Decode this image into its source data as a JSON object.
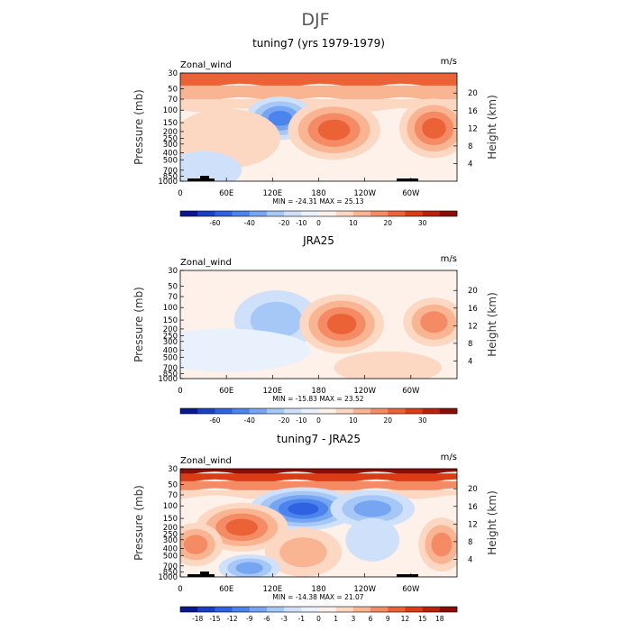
{
  "figure_title": "DJF",
  "chart_data": [
    {
      "type": "heatmap",
      "title": "tuning7 (yrs 1979-1979)",
      "variable_label": "Zonal_wind",
      "units_label": "m/s",
      "ylabel": "Pressure (mb)",
      "y2label": "Height (km)",
      "xticks": [
        "0",
        "60E",
        "120E",
        "180",
        "120W",
        "60W"
      ],
      "yticks": [
        "30",
        "50",
        "70",
        "100",
        "150",
        "200",
        "250",
        "300",
        "400",
        "500",
        "700",
        "850",
        "1000"
      ],
      "y2ticks": [
        "20",
        "16",
        "12",
        "8",
        "4"
      ],
      "stats": "MIN = -24.31   MAX =  25.13",
      "colorbar_labels": [
        "-60",
        "-40",
        "-20",
        "-10",
        "0",
        "10",
        "20",
        "30"
      ],
      "colorbar_colors": [
        "#08188f",
        "#1a3fc4",
        "#2e62e0",
        "#4b84ec",
        "#76a6f2",
        "#a6c8f7",
        "#cfe0fa",
        "#e9f1fc",
        "#fdf1e9",
        "#fcd7c1",
        "#f9b492",
        "#f48b64",
        "#ec6237",
        "#da3d16",
        "#b8210a",
        "#8a0e05"
      ],
      "field": {
        "bands": [
          {
            "p_top": 30,
            "p_bot": 45,
            "color": "#ec6237"
          },
          {
            "p_top": 45,
            "p_bot": 70,
            "color": "#f9b492"
          },
          {
            "p_top": 70,
            "p_bot": 100,
            "color": "#fcd7c1"
          }
        ],
        "base": "#fdf1e9",
        "blobs": [
          {
            "lon": 130,
            "p": 130,
            "w": 45,
            "h": 0.4,
            "levels": [
              "#cfe0fa",
              "#a6c8f7",
              "#76a6f2",
              "#4b84ec"
            ]
          },
          {
            "lon": 200,
            "p": 190,
            "w": 60,
            "h": 0.55,
            "levels": [
              "#fcd7c1",
              "#f9b492",
              "#f48b64",
              "#ec6237"
            ]
          },
          {
            "lon": 330,
            "p": 180,
            "w": 45,
            "h": 0.55,
            "levels": [
              "#fcd7c1",
              "#f9b492",
              "#f48b64",
              "#ec6237"
            ]
          },
          {
            "lon": 60,
            "p": 250,
            "w": 70,
            "h": 0.55,
            "levels": [
              "#fcd7c1"
            ]
          },
          {
            "lon": 30,
            "p": 700,
            "w": 50,
            "h": 0.35,
            "levels": [
              "#cfe0fa"
            ]
          }
        ]
      }
    },
    {
      "type": "heatmap",
      "title": "JRA25",
      "variable_label": "Zonal_wind",
      "units_label": "m/s",
      "ylabel": "Pressure (mb)",
      "y2label": "Height (km)",
      "xticks": [
        "0",
        "60E",
        "120E",
        "180",
        "120W",
        "60W"
      ],
      "yticks": [
        "30",
        "50",
        "70",
        "100",
        "150",
        "200",
        "250",
        "300",
        "400",
        "500",
        "700",
        "850",
        "1000"
      ],
      "y2ticks": [
        "20",
        "16",
        "12",
        "8",
        "4"
      ],
      "stats": "MIN = -15.83   MAX =  23.52",
      "colorbar_labels": [
        "-60",
        "-40",
        "-20",
        "-10",
        "0",
        "10",
        "20",
        "30"
      ],
      "colorbar_colors": [
        "#08188f",
        "#1a3fc4",
        "#2e62e0",
        "#4b84ec",
        "#76a6f2",
        "#a6c8f7",
        "#cfe0fa",
        "#e9f1fc",
        "#fdf1e9",
        "#fcd7c1",
        "#f9b492",
        "#f48b64",
        "#ec6237",
        "#da3d16",
        "#b8210a",
        "#8a0e05"
      ],
      "field": {
        "bands": [
          {
            "p_top": 30,
            "p_bot": 50,
            "color": "#fdf1e9"
          }
        ],
        "base": "#fdf1e9",
        "blobs": [
          {
            "lon": 125,
            "p": 150,
            "w": 55,
            "h": 0.55,
            "levels": [
              "#cfe0fa",
              "#a6c8f7"
            ]
          },
          {
            "lon": 60,
            "p": 400,
            "w": 110,
            "h": 0.4,
            "levels": [
              "#e9f1fc"
            ]
          },
          {
            "lon": 210,
            "p": 170,
            "w": 55,
            "h": 0.55,
            "levels": [
              "#fcd7c1",
              "#f9b492",
              "#f48b64",
              "#ec6237"
            ]
          },
          {
            "lon": 330,
            "p": 160,
            "w": 40,
            "h": 0.45,
            "levels": [
              "#fcd7c1",
              "#f9b492",
              "#f48b64"
            ]
          },
          {
            "lon": 270,
            "p": 700,
            "w": 70,
            "h": 0.3,
            "levels": [
              "#fcd7c1"
            ]
          }
        ]
      }
    },
    {
      "type": "heatmap",
      "title": "tuning7 - JRA25",
      "variable_label": "Zonal_wind",
      "units_label": "m/s",
      "ylabel": "Pressure (mb)",
      "y2label": "Height (km)",
      "xticks": [
        "0",
        "60E",
        "120E",
        "180",
        "120W",
        "60W"
      ],
      "yticks": [
        "30",
        "50",
        "70",
        "100",
        "150",
        "200",
        "250",
        "300",
        "400",
        "500",
        "700",
        "850",
        "1000"
      ],
      "y2ticks": [
        "20",
        "16",
        "12",
        "8",
        "4"
      ],
      "stats": "MIN = -14.38   MAX =  21.07",
      "colorbar_labels": [
        "-18",
        "-15",
        "-12",
        "-9",
        "-6",
        "-3",
        "-1",
        "0",
        "1",
        "3",
        "6",
        "9",
        "12",
        "15",
        "18"
      ],
      "colorbar_colors": [
        "#08188f",
        "#1a3fc4",
        "#2e62e0",
        "#4b84ec",
        "#76a6f2",
        "#a6c8f7",
        "#cfe0fa",
        "#e9f1fc",
        "#fdf1e9",
        "#fcd7c1",
        "#f9b492",
        "#f48b64",
        "#ec6237",
        "#da3d16",
        "#b8210a",
        "#8a0e05"
      ],
      "field": {
        "bands": [
          {
            "p_top": 30,
            "p_bot": 35,
            "color": "#8a0e05"
          },
          {
            "p_top": 35,
            "p_bot": 45,
            "color": "#da3d16"
          },
          {
            "p_top": 45,
            "p_bot": 60,
            "color": "#f48b64"
          },
          {
            "p_top": 60,
            "p_bot": 75,
            "color": "#fcd7c1"
          }
        ],
        "base": "#fdf1e9",
        "blobs": [
          {
            "lon": 160,
            "p": 110,
            "w": 70,
            "h": 0.4,
            "levels": [
              "#cfe0fa",
              "#a6c8f7",
              "#76a6f2",
              "#4b84ec",
              "#2e62e0"
            ]
          },
          {
            "lon": 250,
            "p": 110,
            "w": 55,
            "h": 0.35,
            "levels": [
              "#cfe0fa",
              "#a6c8f7",
              "#76a6f2"
            ]
          },
          {
            "lon": 80,
            "p": 200,
            "w": 60,
            "h": 0.45,
            "levels": [
              "#fcd7c1",
              "#f9b492",
              "#f48b64",
              "#ec6237"
            ]
          },
          {
            "lon": 160,
            "p": 450,
            "w": 50,
            "h": 0.45,
            "levels": [
              "#fcd7c1",
              "#f9b492"
            ]
          },
          {
            "lon": 340,
            "p": 350,
            "w": 30,
            "h": 0.5,
            "levels": [
              "#fcd7c1",
              "#f9b492",
              "#f48b64"
            ]
          },
          {
            "lon": 20,
            "p": 350,
            "w": 35,
            "h": 0.4,
            "levels": [
              "#fcd7c1",
              "#f9b492",
              "#f48b64"
            ]
          },
          {
            "lon": 90,
            "p": 750,
            "w": 40,
            "h": 0.25,
            "levels": [
              "#cfe0fa",
              "#a6c8f7",
              "#76a6f2"
            ]
          },
          {
            "lon": 250,
            "p": 300,
            "w": 35,
            "h": 0.4,
            "levels": [
              "#cfe0fa"
            ]
          }
        ]
      }
    }
  ]
}
